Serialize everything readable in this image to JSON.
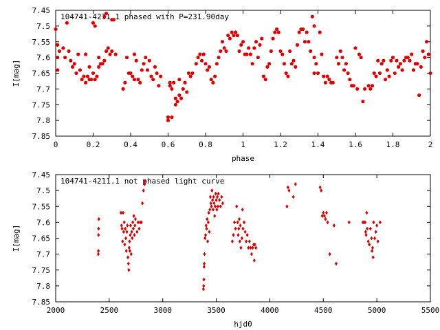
{
  "chart_data": [
    {
      "type": "scatter",
      "title": "104741-4211.1 phased with P=231.90day",
      "xlabel": "phase",
      "ylabel": "I[mag]",
      "xlim": [
        0,
        2
      ],
      "ylim": [
        7.85,
        7.45
      ],
      "y_inverted": true,
      "grid": false,
      "marker": "plus-thick",
      "color": "#e00000",
      "x_ticks": [
        "0",
        "0.2",
        "0.4",
        "0.6",
        "0.8",
        "1",
        "1.2",
        "1.4",
        "1.6",
        "1.8",
        "2"
      ],
      "y_ticks": [
        "7.45",
        "7.5",
        "7.55",
        "7.6",
        "7.65",
        "7.7",
        "7.75",
        "7.8",
        "7.85"
      ],
      "points": [
        [
          0.0,
          7.51
        ],
        [
          0.01,
          7.56
        ],
        [
          0.01,
          7.6
        ],
        [
          0.01,
          7.64
        ],
        [
          0.02,
          7.58
        ],
        [
          0.04,
          7.57
        ],
        [
          0.05,
          7.6
        ],
        [
          0.06,
          7.49
        ],
        [
          0.07,
          7.58
        ],
        [
          0.08,
          7.61
        ],
        [
          0.09,
          7.63
        ],
        [
          0.1,
          7.62
        ],
        [
          0.11,
          7.65
        ],
        [
          0.12,
          7.59
        ],
        [
          0.13,
          7.64
        ],
        [
          0.14,
          7.67
        ],
        [
          0.15,
          7.66
        ],
        [
          0.16,
          7.59
        ],
        [
          0.16,
          7.68
        ],
        [
          0.17,
          7.66
        ],
        [
          0.18,
          7.63
        ],
        [
          0.18,
          7.67
        ],
        [
          0.19,
          7.67
        ],
        [
          0.2,
          7.49
        ],
        [
          0.2,
          7.65
        ],
        [
          0.21,
          7.5
        ],
        [
          0.21,
          7.67
        ],
        [
          0.22,
          7.66
        ],
        [
          0.23,
          7.63
        ],
        [
          0.23,
          7.6
        ],
        [
          0.24,
          7.62
        ],
        [
          0.25,
          7.62
        ],
        [
          0.26,
          7.47
        ],
        [
          0.26,
          7.61
        ],
        [
          0.27,
          7.46
        ],
        [
          0.27,
          7.58
        ],
        [
          0.28,
          7.57
        ],
        [
          0.29,
          7.59
        ],
        [
          0.3,
          7.58
        ],
        [
          0.3,
          7.48
        ],
        [
          0.31,
          7.48
        ],
        [
          0.32,
          7.59
        ],
        [
          0.36,
          7.7
        ],
        [
          0.37,
          7.68
        ],
        [
          0.38,
          7.6
        ],
        [
          0.39,
          7.65
        ],
        [
          0.4,
          7.65
        ],
        [
          0.41,
          7.66
        ],
        [
          0.42,
          7.67
        ],
        [
          0.42,
          7.59
        ],
        [
          0.43,
          7.61
        ],
        [
          0.44,
          7.67
        ],
        [
          0.45,
          7.68
        ],
        [
          0.46,
          7.64
        ],
        [
          0.47,
          7.62
        ],
        [
          0.48,
          7.6
        ],
        [
          0.49,
          7.64
        ],
        [
          0.5,
          7.61
        ],
        [
          0.51,
          7.66
        ],
        [
          0.52,
          7.67
        ],
        [
          0.53,
          7.63
        ],
        [
          0.54,
          7.65
        ],
        [
          0.55,
          7.69
        ],
        [
          0.56,
          7.66
        ],
        [
          0.6,
          7.79
        ],
        [
          0.6,
          7.8
        ],
        [
          0.61,
          7.68
        ],
        [
          0.61,
          7.69
        ],
        [
          0.62,
          7.7
        ],
        [
          0.62,
          7.79
        ],
        [
          0.63,
          7.68
        ],
        [
          0.64,
          7.75
        ],
        [
          0.64,
          7.73
        ],
        [
          0.65,
          7.74
        ],
        [
          0.66,
          7.72
        ],
        [
          0.66,
          7.67
        ],
        [
          0.67,
          7.73
        ],
        [
          0.68,
          7.7
        ],
        [
          0.69,
          7.68
        ],
        [
          0.7,
          7.71
        ],
        [
          0.71,
          7.65
        ],
        [
          0.72,
          7.66
        ],
        [
          0.73,
          7.65
        ],
        [
          0.75,
          7.62
        ],
        [
          0.76,
          7.6
        ],
        [
          0.77,
          7.59
        ],
        [
          0.78,
          7.61
        ],
        [
          0.79,
          7.59
        ],
        [
          0.8,
          7.62
        ],
        [
          0.81,
          7.64
        ],
        [
          0.82,
          7.63
        ],
        [
          0.83,
          7.67
        ],
        [
          0.84,
          7.68
        ],
        [
          0.85,
          7.66
        ],
        [
          0.86,
          7.62
        ],
        [
          0.87,
          7.6
        ],
        [
          0.88,
          7.58
        ],
        [
          0.89,
          7.55
        ],
        [
          0.9,
          7.57
        ],
        [
          0.91,
          7.58
        ],
        [
          0.92,
          7.53
        ],
        [
          0.93,
          7.54
        ],
        [
          0.94,
          7.52
        ],
        [
          0.95,
          7.53
        ],
        [
          0.96,
          7.52
        ],
        [
          0.97,
          7.53
        ],
        [
          0.98,
          7.58
        ],
        [
          0.99,
          7.56
        ],
        [
          1.0,
          7.55
        ],
        [
          1.01,
          7.59
        ],
        [
          1.02,
          7.59
        ],
        [
          1.03,
          7.57
        ],
        [
          1.04,
          7.59
        ],
        [
          1.05,
          7.62
        ],
        [
          1.06,
          7.57
        ],
        [
          1.07,
          7.55
        ],
        [
          1.08,
          7.6
        ],
        [
          1.09,
          7.56
        ],
        [
          1.1,
          7.54
        ],
        [
          1.11,
          7.66
        ],
        [
          1.12,
          7.67
        ],
        [
          1.13,
          7.63
        ],
        [
          1.14,
          7.62
        ],
        [
          1.15,
          7.58
        ],
        [
          1.16,
          7.54
        ],
        [
          1.17,
          7.52
        ],
        [
          1.18,
          7.51
        ],
        [
          1.19,
          7.52
        ],
        [
          1.2,
          7.58
        ],
        [
          1.21,
          7.59
        ],
        [
          1.22,
          7.62
        ],
        [
          1.23,
          7.65
        ],
        [
          1.24,
          7.66
        ],
        [
          1.25,
          7.58
        ],
        [
          1.26,
          7.62
        ],
        [
          1.27,
          7.61
        ],
        [
          1.28,
          7.63
        ],
        [
          1.29,
          7.56
        ],
        [
          1.3,
          7.52
        ],
        [
          1.31,
          7.51
        ],
        [
          1.32,
          7.51
        ],
        [
          1.33,
          7.55
        ],
        [
          1.34,
          7.52
        ],
        [
          1.35,
          7.55
        ],
        [
          1.36,
          7.58
        ],
        [
          1.37,
          7.47
        ],
        [
          1.38,
          7.5
        ],
        [
          1.38,
          7.6
        ],
        [
          1.38,
          7.65
        ],
        [
          1.39,
          7.62
        ],
        [
          1.4,
          7.65
        ],
        [
          1.41,
          7.52
        ],
        [
          1.42,
          7.59
        ],
        [
          1.43,
          7.66
        ],
        [
          1.44,
          7.68
        ],
        [
          1.45,
          7.66
        ],
        [
          1.46,
          7.67
        ],
        [
          1.47,
          7.68
        ],
        [
          1.48,
          7.68
        ],
        [
          1.5,
          7.6
        ],
        [
          1.51,
          7.62
        ],
        [
          1.52,
          7.58
        ],
        [
          1.53,
          7.6
        ],
        [
          1.54,
          7.64
        ],
        [
          1.55,
          7.62
        ],
        [
          1.56,
          7.65
        ],
        [
          1.57,
          7.67
        ],
        [
          1.58,
          7.69
        ],
        [
          1.59,
          7.69
        ],
        [
          1.6,
          7.57
        ],
        [
          1.61,
          7.7
        ],
        [
          1.62,
          7.59
        ],
        [
          1.63,
          7.6
        ],
        [
          1.64,
          7.74
        ],
        [
          1.65,
          7.7
        ],
        [
          1.67,
          7.69
        ],
        [
          1.68,
          7.7
        ],
        [
          1.69,
          7.69
        ],
        [
          1.7,
          7.65
        ],
        [
          1.71,
          7.66
        ],
        [
          1.72,
          7.61
        ],
        [
          1.73,
          7.65
        ],
        [
          1.74,
          7.62
        ],
        [
          1.75,
          7.61
        ],
        [
          1.76,
          7.67
        ],
        [
          1.77,
          7.64
        ],
        [
          1.78,
          7.66
        ],
        [
          1.79,
          7.61
        ],
        [
          1.8,
          7.6
        ],
        [
          1.81,
          7.65
        ],
        [
          1.82,
          7.61
        ],
        [
          1.83,
          7.63
        ],
        [
          1.84,
          7.62
        ],
        [
          1.85,
          7.64
        ],
        [
          1.86,
          7.61
        ],
        [
          1.87,
          7.6
        ],
        [
          1.88,
          7.6
        ],
        [
          1.89,
          7.61
        ],
        [
          1.9,
          7.59
        ],
        [
          1.91,
          7.64
        ],
        [
          1.92,
          7.62
        ],
        [
          1.93,
          7.62
        ],
        [
          1.94,
          7.72
        ],
        [
          1.95,
          7.63
        ],
        [
          1.96,
          7.58
        ],
        [
          1.97,
          7.6
        ],
        [
          1.98,
          7.55
        ],
        [
          1.99,
          7.59
        ],
        [
          2.0,
          7.65
        ]
      ]
    },
    {
      "type": "scatter",
      "title": "104741-4211.1 not phased light curve",
      "xlabel": "hjd0",
      "ylabel": "I[mag]",
      "xlim": [
        2000,
        5500
      ],
      "ylim": [
        7.85,
        7.45
      ],
      "y_inverted": true,
      "grid": false,
      "marker": "diamond",
      "color": "#e00000",
      "x_ticks": [
        "2000",
        "2500",
        "3000",
        "3500",
        "4000",
        "4500",
        "5000",
        "5500"
      ],
      "y_ticks": [
        "7.45",
        "7.5",
        "7.55",
        "7.6",
        "7.65",
        "7.7",
        "7.75",
        "7.8",
        "7.85"
      ],
      "points": [
        [
          2398,
          7.7
        ],
        [
          2399,
          7.69
        ],
        [
          2400,
          7.64
        ],
        [
          2401,
          7.62
        ],
        [
          2403,
          7.59
        ],
        [
          2610,
          7.57
        ],
        [
          2615,
          7.61
        ],
        [
          2620,
          7.62
        ],
        [
          2625,
          7.66
        ],
        [
          2630,
          7.57
        ],
        [
          2635,
          7.63
        ],
        [
          2640,
          7.6
        ],
        [
          2645,
          7.67
        ],
        [
          2650,
          7.62
        ],
        [
          2655,
          7.65
        ],
        [
          2660,
          7.69
        ],
        [
          2665,
          7.63
        ],
        [
          2670,
          7.61
        ],
        [
          2675,
          7.71
        ],
        [
          2680,
          7.73
        ],
        [
          2683,
          7.75
        ],
        [
          2686,
          7.68
        ],
        [
          2690,
          7.66
        ],
        [
          2693,
          7.69
        ],
        [
          2697,
          7.64
        ],
        [
          2700,
          7.61
        ],
        [
          2705,
          7.7
        ],
        [
          2710,
          7.63
        ],
        [
          2715,
          7.65
        ],
        [
          2720,
          7.6
        ],
        [
          2725,
          7.62
        ],
        [
          2730,
          7.58
        ],
        [
          2735,
          7.64
        ],
        [
          2740,
          7.61
        ],
        [
          2745,
          7.59
        ],
        [
          2760,
          7.63
        ],
        [
          2770,
          7.6
        ],
        [
          2780,
          7.62
        ],
        [
          2790,
          7.6
        ],
        [
          2800,
          7.6
        ],
        [
          2810,
          7.54
        ],
        [
          2820,
          7.5
        ],
        [
          2830,
          7.48
        ],
        [
          2835,
          7.47
        ],
        [
          3380,
          7.81
        ],
        [
          3382,
          7.8
        ],
        [
          3384,
          7.78
        ],
        [
          3386,
          7.74
        ],
        [
          3388,
          7.73
        ],
        [
          3390,
          7.7
        ],
        [
          3395,
          7.65
        ],
        [
          3400,
          7.64
        ],
        [
          3405,
          7.61
        ],
        [
          3410,
          7.62
        ],
        [
          3415,
          7.59
        ],
        [
          3420,
          7.66
        ],
        [
          3425,
          7.6
        ],
        [
          3430,
          7.57
        ],
        [
          3435,
          7.63
        ],
        [
          3440,
          7.56
        ],
        [
          3445,
          7.52
        ],
        [
          3450,
          7.54
        ],
        [
          3455,
          7.55
        ],
        [
          3460,
          7.5
        ],
        [
          3465,
          7.53
        ],
        [
          3470,
          7.56
        ],
        [
          3475,
          7.52
        ],
        [
          3480,
          7.54
        ],
        [
          3485,
          7.58
        ],
        [
          3490,
          7.55
        ],
        [
          3495,
          7.51
        ],
        [
          3500,
          7.53
        ],
        [
          3505,
          7.56
        ],
        [
          3510,
          7.52
        ],
        [
          3515,
          7.55
        ],
        [
          3520,
          7.51
        ],
        [
          3530,
          7.53
        ],
        [
          3540,
          7.55
        ],
        [
          3550,
          7.52
        ],
        [
          3560,
          7.54
        ],
        [
          3650,
          7.66
        ],
        [
          3660,
          7.64
        ],
        [
          3670,
          7.6
        ],
        [
          3680,
          7.62
        ],
        [
          3690,
          7.55
        ],
        [
          3700,
          7.6
        ],
        [
          3705,
          7.64
        ],
        [
          3710,
          7.62
        ],
        [
          3715,
          7.59
        ],
        [
          3720,
          7.66
        ],
        [
          3725,
          7.61
        ],
        [
          3730,
          7.68
        ],
        [
          3740,
          7.65
        ],
        [
          3745,
          7.56
        ],
        [
          3750,
          7.62
        ],
        [
          3760,
          7.6
        ],
        [
          3770,
          7.63
        ],
        [
          3780,
          7.66
        ],
        [
          3790,
          7.64
        ],
        [
          3800,
          7.68
        ],
        [
          3810,
          7.66
        ],
        [
          3820,
          7.68
        ],
        [
          3830,
          7.7
        ],
        [
          3840,
          7.68
        ],
        [
          3850,
          7.67
        ],
        [
          3855,
          7.72
        ],
        [
          3860,
          7.67
        ],
        [
          3870,
          7.68
        ],
        [
          4160,
          7.55
        ],
        [
          4170,
          7.49
        ],
        [
          4180,
          7.5
        ],
        [
          4220,
          7.52
        ],
        [
          4240,
          7.48
        ],
        [
          4470,
          7.49
        ],
        [
          4480,
          7.5
        ],
        [
          4490,
          7.58
        ],
        [
          4500,
          7.57
        ],
        [
          4510,
          7.58
        ],
        [
          4520,
          7.59
        ],
        [
          4530,
          7.57
        ],
        [
          4540,
          7.6
        ],
        [
          4560,
          7.7
        ],
        [
          4600,
          7.61
        ],
        [
          4620,
          7.73
        ],
        [
          4740,
          7.6
        ],
        [
          4870,
          7.6
        ],
        [
          4880,
          7.6
        ],
        [
          4890,
          7.6
        ],
        [
          4895,
          7.63
        ],
        [
          4900,
          7.64
        ],
        [
          4905,
          7.57
        ],
        [
          4910,
          7.62
        ],
        [
          4920,
          7.66
        ],
        [
          4930,
          7.67
        ],
        [
          4940,
          7.62
        ],
        [
          4950,
          7.65
        ],
        [
          4955,
          7.69
        ],
        [
          4960,
          7.68
        ],
        [
          4965,
          7.71
        ],
        [
          4970,
          7.6
        ],
        [
          4980,
          7.65
        ],
        [
          4990,
          7.63
        ],
        [
          5000,
          7.61
        ],
        [
          5010,
          7.66
        ],
        [
          5030,
          7.6
        ]
      ]
    }
  ]
}
